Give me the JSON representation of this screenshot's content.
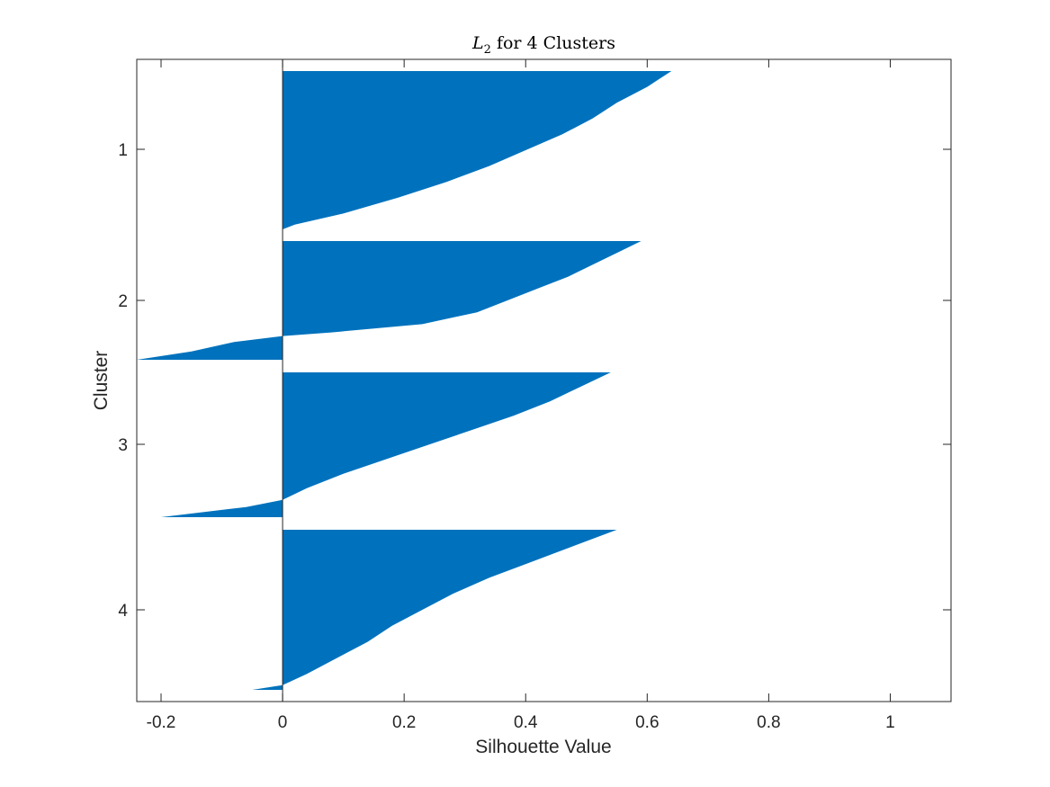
{
  "chart_data": {
    "type": "silhouette",
    "title": {
      "main": "L",
      "subscript": "2",
      "rest": " for 4 Clusters"
    },
    "xlabel": "Silhouette Value",
    "ylabel": "Cluster",
    "xlim": [
      -0.24,
      1.1
    ],
    "xticks": [
      -0.2,
      0,
      0.2,
      0.4,
      0.6,
      0.8,
      1
    ],
    "xtick_labels": [
      "-0.2",
      "0",
      "0.2",
      "0.4",
      "0.6",
      "0.8",
      "1"
    ],
    "grid": false,
    "color": "#0072BD",
    "clusters": [
      {
        "label": "1",
        "profile": [
          [
            0,
            0.64
          ],
          [
            0.05,
            0.62
          ],
          [
            0.1,
            0.6
          ],
          [
            0.2,
            0.55
          ],
          [
            0.3,
            0.51
          ],
          [
            0.4,
            0.46
          ],
          [
            0.5,
            0.4
          ],
          [
            0.6,
            0.34
          ],
          [
            0.7,
            0.27
          ],
          [
            0.8,
            0.19
          ],
          [
            0.9,
            0.1
          ],
          [
            0.97,
            0.02
          ],
          [
            1,
            0.0
          ]
        ]
      },
      {
        "label": "2",
        "profile": [
          [
            0,
            0.59
          ],
          [
            0.1,
            0.55
          ],
          [
            0.2,
            0.51
          ],
          [
            0.3,
            0.47
          ],
          [
            0.4,
            0.42
          ],
          [
            0.5,
            0.37
          ],
          [
            0.6,
            0.32
          ],
          [
            0.7,
            0.23
          ],
          [
            0.77,
            0.08
          ],
          [
            0.8,
            0.0
          ],
          [
            0.85,
            -0.08
          ],
          [
            0.93,
            -0.15
          ],
          [
            1,
            -0.24
          ]
        ]
      },
      {
        "label": "3",
        "profile": [
          [
            0,
            0.54
          ],
          [
            0.1,
            0.49
          ],
          [
            0.2,
            0.44
          ],
          [
            0.3,
            0.38
          ],
          [
            0.4,
            0.31
          ],
          [
            0.5,
            0.24
          ],
          [
            0.6,
            0.17
          ],
          [
            0.7,
            0.1
          ],
          [
            0.8,
            0.04
          ],
          [
            0.88,
            0.0
          ],
          [
            0.93,
            -0.06
          ],
          [
            1,
            -0.2
          ]
        ]
      },
      {
        "label": "4",
        "profile": [
          [
            0,
            0.55
          ],
          [
            0.1,
            0.48
          ],
          [
            0.2,
            0.41
          ],
          [
            0.3,
            0.34
          ],
          [
            0.4,
            0.28
          ],
          [
            0.5,
            0.23
          ],
          [
            0.6,
            0.18
          ],
          [
            0.7,
            0.14
          ],
          [
            0.8,
            0.09
          ],
          [
            0.9,
            0.04
          ],
          [
            0.97,
            0.0
          ],
          [
            1,
            -0.05
          ]
        ]
      }
    ]
  }
}
